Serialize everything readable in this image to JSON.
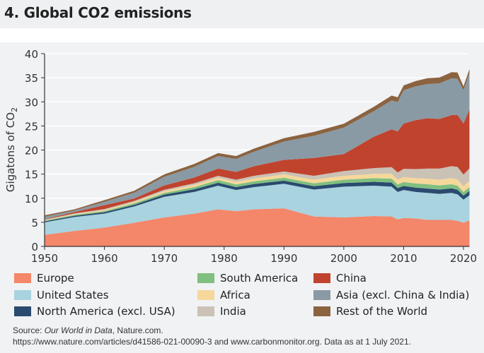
{
  "title": "4. Global CO2 emissions",
  "chart_data": {
    "type": "area",
    "stacked": true,
    "ylabel": "Gigatons of CO",
    "ylabel_sub": "2",
    "ylim": [
      0,
      40
    ],
    "yticks": [
      "0",
      "5",
      "10",
      "15",
      "20",
      "25",
      "30",
      "35",
      "40"
    ],
    "xlim": [
      1950,
      2021
    ],
    "xticks": [
      "1950",
      "1960",
      "1970",
      "1980",
      "1990",
      "2000",
      "2010",
      "2020"
    ],
    "grid": "horizontal",
    "legend": "bottom",
    "x": [
      1950,
      1955,
      1960,
      1965,
      1970,
      1975,
      1979,
      1982,
      1985,
      1990,
      1995,
      2000,
      2005,
      2008,
      2009,
      2010,
      2012,
      2014,
      2016,
      2018,
      2019,
      2020,
      2021
    ],
    "series": [
      {
        "name": "Europe",
        "color": "#f4866a",
        "values": [
          2.4,
          3.2,
          3.9,
          4.9,
          6.0,
          6.8,
          7.7,
          7.3,
          7.7,
          7.9,
          6.2,
          6.0,
          6.3,
          6.2,
          5.6,
          5.9,
          5.8,
          5.5,
          5.5,
          5.5,
          5.3,
          4.9,
          5.4
        ]
      },
      {
        "name": "United States",
        "color": "#a8d3df",
        "values": [
          2.6,
          2.9,
          2.9,
          3.4,
          4.3,
          4.5,
          4.9,
          4.4,
          4.6,
          5.1,
          5.6,
          6.4,
          6.3,
          6.2,
          5.7,
          5.8,
          5.5,
          5.6,
          5.4,
          5.6,
          5.5,
          4.8,
          5.2
        ]
      },
      {
        "name": "North America (excl. USA)",
        "color": "#2b4a6f",
        "values": [
          0.2,
          0.25,
          0.3,
          0.35,
          0.45,
          0.55,
          0.6,
          0.6,
          0.65,
          0.65,
          0.7,
          0.75,
          0.8,
          0.85,
          0.8,
          0.85,
          0.9,
          0.9,
          0.9,
          0.95,
          0.95,
          0.85,
          0.9
        ]
      },
      {
        "name": "South America",
        "color": "#7fbf7f",
        "values": [
          0.15,
          0.2,
          0.25,
          0.3,
          0.35,
          0.45,
          0.55,
          0.55,
          0.55,
          0.6,
          0.6,
          0.7,
          0.75,
          0.8,
          0.75,
          0.8,
          0.85,
          0.9,
          0.85,
          0.85,
          0.85,
          0.75,
          0.8
        ]
      },
      {
        "name": "Africa",
        "color": "#f5d89a",
        "values": [
          0.1,
          0.15,
          0.2,
          0.25,
          0.35,
          0.45,
          0.5,
          0.55,
          0.6,
          0.7,
          0.75,
          0.8,
          0.9,
          1.0,
          1.0,
          1.05,
          1.1,
          1.15,
          1.2,
          1.25,
          1.3,
          1.2,
          1.3
        ]
      },
      {
        "name": "India",
        "color": "#cbc2b6",
        "values": [
          0.1,
          0.15,
          0.2,
          0.25,
          0.3,
          0.35,
          0.4,
          0.45,
          0.55,
          0.6,
          0.8,
          1.0,
          1.2,
          1.4,
          1.5,
          1.7,
          1.9,
          2.1,
          2.3,
          2.5,
          2.6,
          2.4,
          2.6
        ]
      },
      {
        "name": "China",
        "color": "#c0432e",
        "values": [
          0.1,
          0.3,
          0.8,
          0.5,
          0.9,
          1.2,
          1.5,
          1.6,
          2.0,
          2.4,
          3.7,
          3.5,
          6.5,
          7.85,
          8.5,
          9.4,
          10.15,
          10.45,
          10.3,
          10.6,
          10.8,
          10.6,
          12.2
        ]
      },
      {
        "name": "Asia (excl. China & India)",
        "color": "#8a9aa4",
        "values": [
          0.5,
          0.3,
          0.7,
          1.2,
          1.8,
          2.2,
          2.6,
          2.7,
          3.0,
          3.8,
          4.6,
          5.5,
          5.3,
          6.0,
          6.1,
          6.9,
          7.0,
          7.1,
          7.4,
          7.6,
          7.5,
          6.9,
          7.6
        ]
      },
      {
        "name": "Rest of the World",
        "color": "#8b6340",
        "values": [
          0.3,
          0.25,
          0.35,
          0.4,
          0.5,
          0.6,
          0.6,
          0.6,
          0.65,
          0.7,
          0.8,
          0.8,
          0.9,
          1.0,
          1.0,
          1.0,
          1.1,
          1.2,
          1.2,
          1.3,
          1.3,
          0.8,
          0.8
        ]
      }
    ]
  },
  "legend_items": [
    "Europe",
    "South America",
    "China",
    "United States",
    "Africa",
    "Asia (excl. China & India)",
    "North America (excl. USA)",
    "India",
    "Rest of the World"
  ],
  "source": {
    "prefix": "Source: ",
    "italic": "Our World in Data",
    "suffix": ", Nature.com.",
    "line2": "https://www.nature.com/articles/d41586-021-00090-3 and www.carbonmonitor.org. Data as at 1 July 2021."
  }
}
